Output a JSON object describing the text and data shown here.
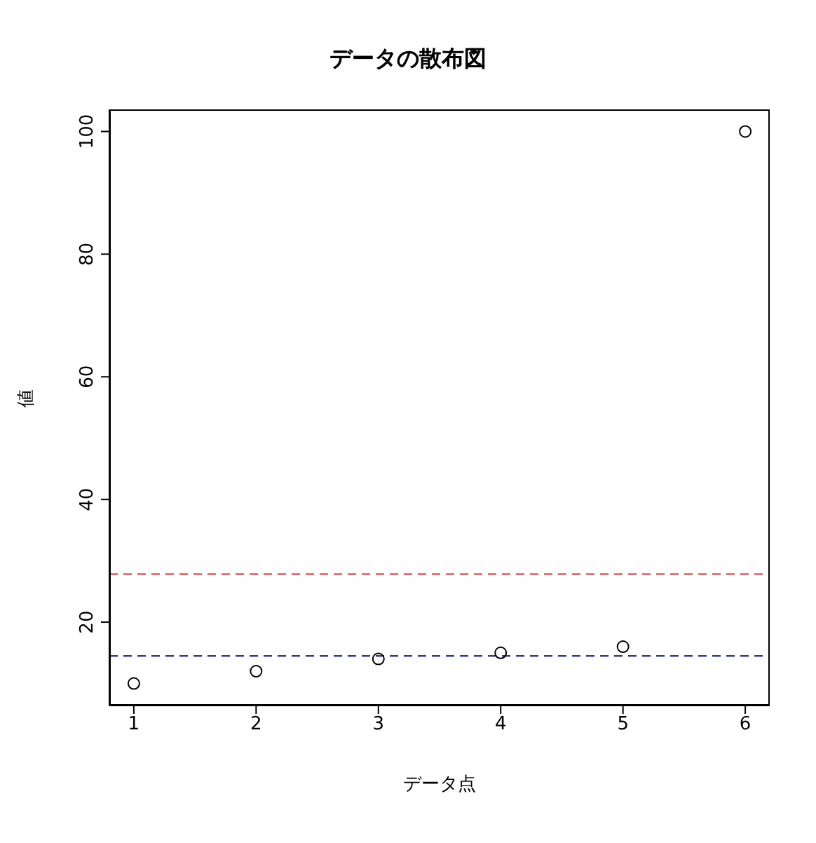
{
  "chart_data": {
    "type": "scatter",
    "title": "データの散布図",
    "xlabel": "データ点",
    "ylabel": "値",
    "x": [
      1,
      2,
      3,
      4,
      5,
      6
    ],
    "values": [
      10,
      12,
      14,
      15,
      16,
      100
    ],
    "color": "#000000",
    "marker": "circle",
    "xlim": [
      0.8,
      6.2
    ],
    "xticks": [
      1,
      2,
      3,
      4,
      5,
      6
    ],
    "ylim": [
      6.4,
      103.6
    ],
    "yticks": [
      20,
      40,
      60,
      80,
      100
    ],
    "ref_lines": [
      {
        "axis": "y",
        "value": 27.83,
        "color": "#cc3333",
        "line_style": "dashed"
      },
      {
        "axis": "y",
        "value": 14.5,
        "color": "#000080",
        "line_style": "dashed"
      }
    ],
    "grid": false,
    "legend": false
  }
}
